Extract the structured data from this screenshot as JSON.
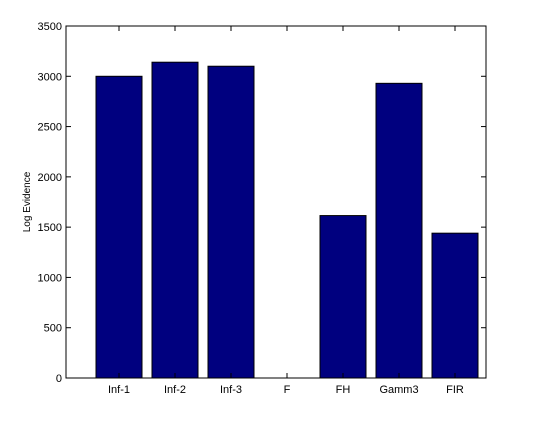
{
  "chart_data": {
    "type": "bar",
    "title": "",
    "xlabel": "",
    "ylabel": "Log Evidence",
    "categories": [
      "Inf-1",
      "Inf-2",
      "Inf-3",
      "F",
      "FH",
      "Gamm3",
      "FIR"
    ],
    "values": [
      3000,
      3140,
      3100,
      0,
      1615,
      2930,
      1440
    ],
    "ylim": [
      0,
      3500
    ],
    "yticks": [
      0,
      500,
      1000,
      1500,
      2000,
      2500,
      3000,
      3500
    ],
    "grid": false,
    "legend": "none",
    "bar_color": "#00007f"
  }
}
